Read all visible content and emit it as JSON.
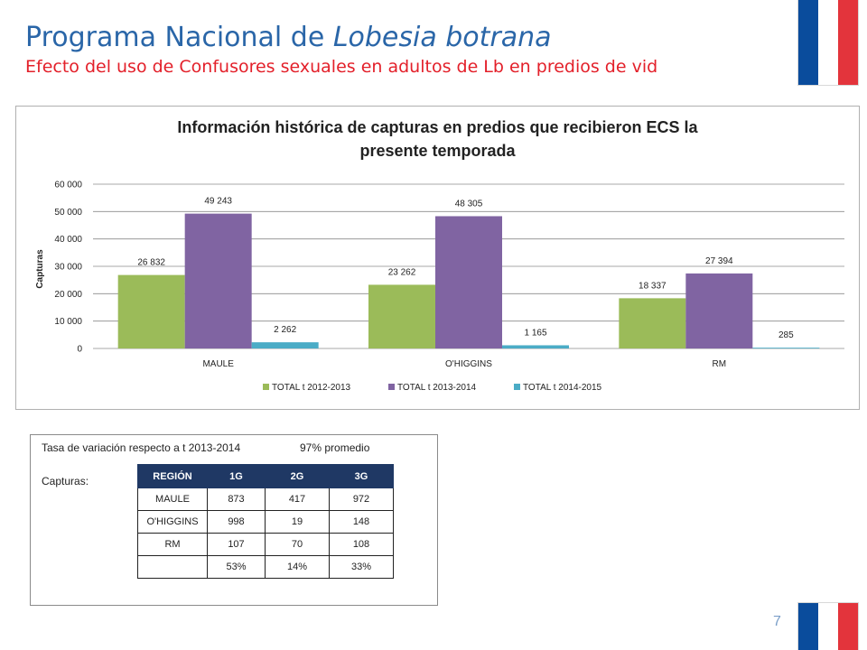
{
  "header": {
    "title_prefix": "Programa Nacional de ",
    "title_italic": "Lobesia botrana",
    "subtitle": "Efecto del uso de Confusores sexuales en adultos de Lb en predios de vid"
  },
  "colors": {
    "flag_blue": "#0a4c9c",
    "flag_white": "#ffffff",
    "flag_red": "#e3343c",
    "title_blue": "#2a66a8",
    "subtitle_red": "#e3202a",
    "table_header": "#1f3864"
  },
  "chart_data": {
    "type": "bar",
    "title_line1": "Información histórica de capturas en predios que recibieron ECS la",
    "title_line2": "presente temporada",
    "ylabel": "Capturas",
    "xlabel": "",
    "ylim": [
      0,
      60000
    ],
    "yticks": [
      0,
      10000,
      20000,
      30000,
      40000,
      50000,
      60000
    ],
    "ytick_labels": [
      "0",
      "10 000",
      "20 000",
      "30 000",
      "40 000",
      "50 000",
      "60 000"
    ],
    "grid": true,
    "legend_position": "bottom",
    "categories": [
      "MAULE",
      "O'HIGGINS",
      "RM"
    ],
    "series": [
      {
        "name": "TOTAL t  2012-2013",
        "color": "#9bbb59",
        "values": [
          26832,
          23262,
          18337
        ],
        "labels": [
          "26 832",
          "23 262",
          "18 337"
        ]
      },
      {
        "name": "TOTAL t 2013-2014",
        "color": "#8064a2",
        "values": [
          49243,
          48305,
          27394
        ],
        "labels": [
          "49 243",
          "48 305",
          "27 394"
        ]
      },
      {
        "name": "TOTAL t 2014-2015",
        "color": "#4bacc6",
        "values": [
          2262,
          1165,
          285
        ],
        "labels": [
          "2 262",
          "1 165",
          "285"
        ]
      }
    ]
  },
  "summary": {
    "tasa_label": "Tasa de variación  respecto a t 2013-2014",
    "tasa_value": "97%  promedio",
    "capturas_label": "Capturas:",
    "table": {
      "headers": [
        "REGIÓN",
        "1G",
        "2G",
        "3G"
      ],
      "rows": [
        [
          "MAULE",
          "873",
          "417",
          "972"
        ],
        [
          "O'HIGGINS",
          "998",
          "19",
          "148"
        ],
        [
          "RM",
          "107",
          "70",
          "108"
        ],
        [
          "",
          "53%",
          "14%",
          "33%"
        ]
      ]
    }
  },
  "footer": {
    "page_number": "7"
  }
}
